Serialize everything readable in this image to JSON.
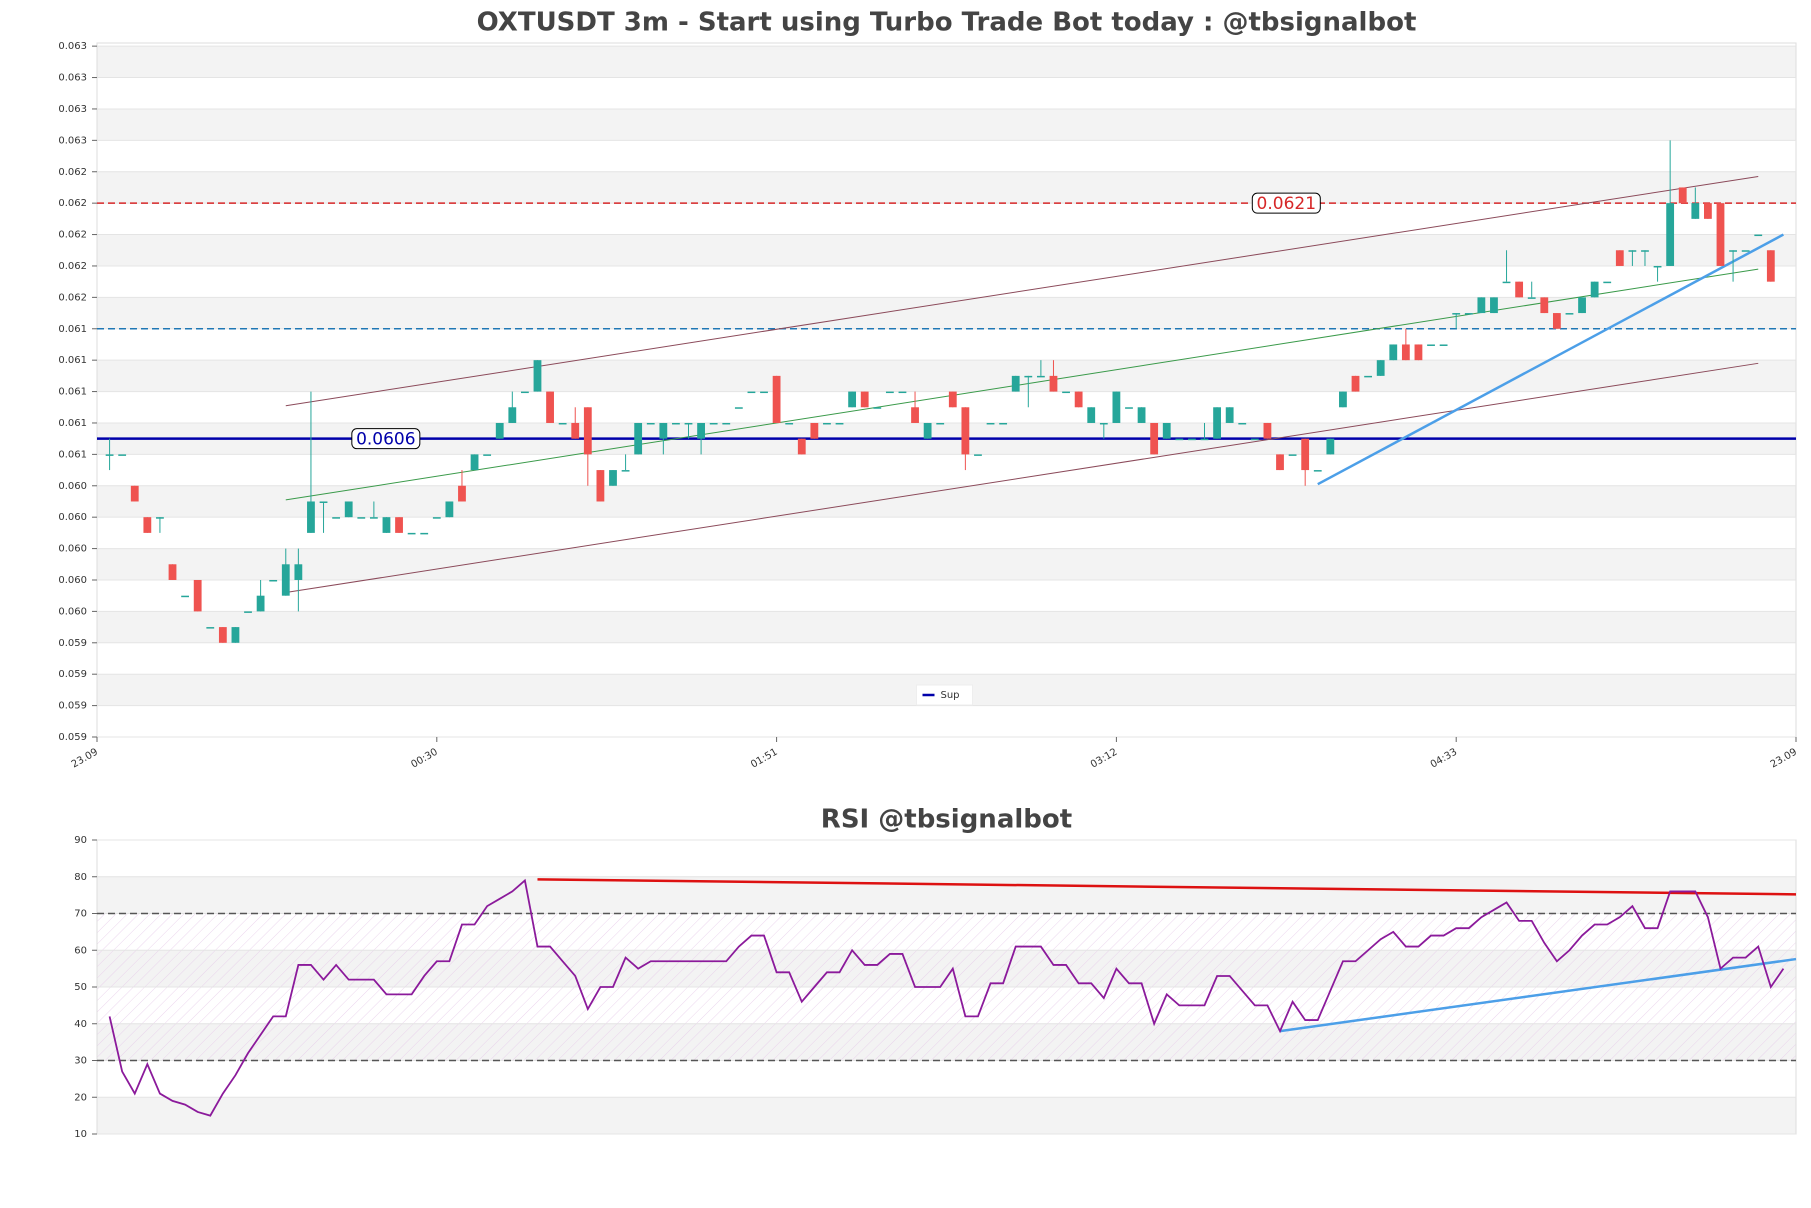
{
  "chart_data": [
    {
      "type": "candlestick",
      "title": "OXTUSDT 3m - Start using Turbo Trade Bot today : @tbsignalbot",
      "up_color": "#26a69a",
      "down_color": "#ef5350",
      "open": [
        0.0605,
        0.0605,
        0.0603,
        0.0601,
        0.0601,
        0.0598,
        0.0596,
        0.0597,
        0.0594,
        0.0594,
        0.0593,
        0.0595,
        0.0595,
        0.0597,
        0.0596,
        0.0597,
        0.06,
        0.0602,
        0.0601,
        0.0601,
        0.0601,
        0.0601,
        0.06,
        0.0601,
        0.06,
        0.06,
        0.0601,
        0.0601,
        0.0603,
        0.0604,
        0.0605,
        0.0606,
        0.0607,
        0.0609,
        0.0609,
        0.0609,
        0.0607,
        0.0607,
        0.0608,
        0.0604,
        0.0603,
        0.0604,
        0.0605,
        0.0607,
        0.0606,
        0.0607,
        0.0607,
        0.0606,
        0.0607,
        0.0607,
        0.0608,
        0.0609,
        0.0609,
        0.061,
        0.0607,
        0.0606,
        0.0607,
        0.0607,
        0.0607,
        0.0608,
        0.0609,
        0.0608,
        0.0609,
        0.0609,
        0.0608,
        0.0606,
        0.0607,
        0.0609,
        0.0608,
        0.0605,
        0.0607,
        0.0607,
        0.0609,
        0.061,
        0.061,
        0.061,
        0.0609,
        0.0609,
        0.0607,
        0.0607,
        0.0607,
        0.0608,
        0.0607,
        0.0607,
        0.0606,
        0.0606,
        0.0606,
        0.0606,
        0.0606,
        0.0607,
        0.0607,
        0.0606,
        0.0607,
        0.0605,
        0.0605,
        0.0606,
        0.0604,
        0.0605,
        0.0608,
        0.061,
        0.061,
        0.061,
        0.0611,
        0.0612,
        0.0612,
        0.0612,
        0.0612,
        0.0614,
        0.0614,
        0.0614,
        0.0614,
        0.0616,
        0.0616,
        0.0615,
        0.0615,
        0.0614,
        0.0614,
        0.0614,
        0.0615,
        0.0616,
        0.0618,
        0.0618,
        0.0618,
        0.0617,
        0.0617,
        0.0622,
        0.062,
        0.0621,
        0.0621,
        0.0618,
        0.0618,
        0.0619,
        0.0618
      ],
      "high": [
        0.0606,
        0.0605,
        0.0603,
        0.0601,
        0.0601,
        0.0598,
        0.0596,
        0.0597,
        0.0594,
        0.0594,
        0.0594,
        0.0595,
        0.0597,
        0.0597,
        0.0599,
        0.0599,
        0.0609,
        0.0602,
        0.0601,
        0.0602,
        0.0601,
        0.0602,
        0.0601,
        0.0601,
        0.06,
        0.06,
        0.0601,
        0.0602,
        0.0604,
        0.0605,
        0.0605,
        0.0607,
        0.0609,
        0.0609,
        0.0611,
        0.0609,
        0.0607,
        0.0608,
        0.0608,
        0.0604,
        0.0604,
        0.0605,
        0.0607,
        0.0607,
        0.0607,
        0.0607,
        0.0607,
        0.0607,
        0.0607,
        0.0607,
        0.0608,
        0.0609,
        0.0609,
        0.061,
        0.0607,
        0.0606,
        0.0607,
        0.0607,
        0.0607,
        0.0609,
        0.0609,
        0.0608,
        0.0609,
        0.0609,
        0.0609,
        0.0607,
        0.0607,
        0.0609,
        0.0608,
        0.0605,
        0.0607,
        0.0607,
        0.061,
        0.061,
        0.0611,
        0.0611,
        0.0609,
        0.0609,
        0.0608,
        0.0607,
        0.0609,
        0.0608,
        0.0608,
        0.0607,
        0.0607,
        0.0606,
        0.0606,
        0.0607,
        0.0608,
        0.0608,
        0.0607,
        0.0606,
        0.0607,
        0.0605,
        0.0605,
        0.0606,
        0.0604,
        0.0606,
        0.0609,
        0.061,
        0.061,
        0.0611,
        0.0612,
        0.0613,
        0.0612,
        0.0612,
        0.0612,
        0.0614,
        0.0614,
        0.0615,
        0.0615,
        0.0618,
        0.0616,
        0.0616,
        0.0615,
        0.0614,
        0.0614,
        0.0615,
        0.0616,
        0.0616,
        0.0618,
        0.0618,
        0.0618,
        0.0617,
        0.0625,
        0.0622,
        0.0622,
        0.0621,
        0.0621,
        0.0618,
        0.0618,
        0.0619,
        0.0618
      ],
      "low": [
        0.0604,
        0.0605,
        0.0602,
        0.06,
        0.06,
        0.0597,
        0.0596,
        0.0595,
        0.0594,
        0.0593,
        0.0593,
        0.0595,
        0.0595,
        0.0597,
        0.0596,
        0.0595,
        0.06,
        0.06,
        0.0601,
        0.0601,
        0.0601,
        0.0601,
        0.06,
        0.06,
        0.06,
        0.06,
        0.0601,
        0.0601,
        0.0602,
        0.0604,
        0.0605,
        0.0606,
        0.0607,
        0.0609,
        0.0609,
        0.0607,
        0.0607,
        0.0606,
        0.0603,
        0.0602,
        0.0603,
        0.0604,
        0.0605,
        0.0607,
        0.0605,
        0.0607,
        0.0606,
        0.0605,
        0.0607,
        0.0607,
        0.0608,
        0.0609,
        0.0609,
        0.0607,
        0.0607,
        0.0605,
        0.0606,
        0.0607,
        0.0607,
        0.0608,
        0.0608,
        0.0608,
        0.0609,
        0.0609,
        0.0607,
        0.0606,
        0.0607,
        0.0608,
        0.0604,
        0.0605,
        0.0607,
        0.0607,
        0.0609,
        0.0608,
        0.061,
        0.0609,
        0.0609,
        0.0608,
        0.0607,
        0.0606,
        0.0607,
        0.0608,
        0.0607,
        0.0605,
        0.0606,
        0.0606,
        0.0606,
        0.0606,
        0.0606,
        0.0607,
        0.0607,
        0.0606,
        0.0606,
        0.0604,
        0.0605,
        0.0603,
        0.0604,
        0.0605,
        0.0608,
        0.0609,
        0.061,
        0.061,
        0.0611,
        0.0611,
        0.0611,
        0.0612,
        0.0612,
        0.0613,
        0.0614,
        0.0614,
        0.0614,
        0.0616,
        0.0615,
        0.0615,
        0.0614,
        0.0613,
        0.0614,
        0.0614,
        0.0615,
        0.0616,
        0.0617,
        0.0617,
        0.0617,
        0.0616,
        0.0617,
        0.0621,
        0.062,
        0.062,
        0.0617,
        0.0616,
        0.0618,
        0.0619,
        0.0616
      ],
      "close": [
        0.0605,
        0.0605,
        0.0602,
        0.06,
        0.0601,
        0.0597,
        0.0596,
        0.0595,
        0.0594,
        0.0593,
        0.0594,
        0.0595,
        0.0596,
        0.0597,
        0.0598,
        0.0598,
        0.0602,
        0.0602,
        0.0601,
        0.0602,
        0.0601,
        0.0601,
        0.0601,
        0.06,
        0.06,
        0.06,
        0.0601,
        0.0602,
        0.0602,
        0.0605,
        0.0605,
        0.0607,
        0.0608,
        0.0609,
        0.0611,
        0.0607,
        0.0607,
        0.0606,
        0.0605,
        0.0602,
        0.0604,
        0.0604,
        0.0607,
        0.0607,
        0.0607,
        0.0607,
        0.0607,
        0.0607,
        0.0607,
        0.0607,
        0.0608,
        0.0609,
        0.0609,
        0.0607,
        0.0607,
        0.0605,
        0.0606,
        0.0607,
        0.0607,
        0.0609,
        0.0608,
        0.0608,
        0.0609,
        0.0609,
        0.0607,
        0.0607,
        0.0607,
        0.0608,
        0.0605,
        0.0605,
        0.0607,
        0.0607,
        0.061,
        0.061,
        0.061,
        0.0609,
        0.0609,
        0.0608,
        0.0608,
        0.0607,
        0.0609,
        0.0608,
        0.0608,
        0.0605,
        0.0607,
        0.0606,
        0.0606,
        0.0606,
        0.0608,
        0.0608,
        0.0607,
        0.0606,
        0.0606,
        0.0604,
        0.0605,
        0.0604,
        0.0604,
        0.0606,
        0.0609,
        0.0609,
        0.061,
        0.0611,
        0.0612,
        0.0611,
        0.0611,
        0.0612,
        0.0612,
        0.0614,
        0.0614,
        0.0615,
        0.0615,
        0.0616,
        0.0615,
        0.0615,
        0.0614,
        0.0613,
        0.0614,
        0.0615,
        0.0616,
        0.0616,
        0.0617,
        0.0618,
        0.0618,
        0.0617,
        0.0621,
        0.0621,
        0.0621,
        0.062,
        0.0617,
        0.0618,
        0.0618,
        0.0619,
        0.0616
      ],
      "xlim": [
        -1,
        134
      ],
      "xticks": [
        {
          "value": -1,
          "label": "23.09"
        },
        {
          "value": 26,
          "label": "00:30"
        },
        {
          "value": 53,
          "label": "01:51"
        },
        {
          "value": 80,
          "label": "03:12"
        },
        {
          "value": 107,
          "label": "04:33"
        },
        {
          "value": 134,
          "label": "23.09"
        }
      ],
      "ylim": [
        0.0587,
        0.06312
      ],
      "yticks": [
        {
          "value": 0.0587,
          "label": "0.059"
        },
        {
          "value": 0.0589,
          "label": "0.059"
        },
        {
          "value": 0.0591,
          "label": "0.059"
        },
        {
          "value": 0.0593,
          "label": "0.059"
        },
        {
          "value": 0.0595,
          "label": "0.060"
        },
        {
          "value": 0.0597,
          "label": "0.060"
        },
        {
          "value": 0.0599,
          "label": "0.060"
        },
        {
          "value": 0.0601,
          "label": "0.060"
        },
        {
          "value": 0.0603,
          "label": "0.060"
        },
        {
          "value": 0.0605,
          "label": "0.061"
        },
        {
          "value": 0.0607,
          "label": "0.061"
        },
        {
          "value": 0.0609,
          "label": "0.061"
        },
        {
          "value": 0.0611,
          "label": "0.061"
        },
        {
          "value": 0.0613,
          "label": "0.061"
        },
        {
          "value": 0.0615,
          "label": "0.062"
        },
        {
          "value": 0.0617,
          "label": "0.062"
        },
        {
          "value": 0.0619,
          "label": "0.062"
        },
        {
          "value": 0.0621,
          "label": "0.062"
        },
        {
          "value": 0.0623,
          "label": "0.062"
        },
        {
          "value": 0.0625,
          "label": "0.063"
        },
        {
          "value": 0.0627,
          "label": "0.063"
        },
        {
          "value": 0.0629,
          "label": "0.063"
        },
        {
          "value": 0.0631,
          "label": "0.063"
        }
      ],
      "hlines": [
        {
          "value": 0.0621,
          "color": "#d62728",
          "dashed": true,
          "labeled": true
        },
        {
          "value": 0.0613,
          "color": "#1f77b4",
          "dashed": true,
          "labeled": false
        },
        {
          "name": "Sup",
          "value": 0.0606,
          "color": "#0000aa",
          "dashed": false,
          "labeled": true
        }
      ],
      "lines": [
        {
          "x": [
            14,
            131
          ],
          "y": [
            0.06081,
            0.06227
          ],
          "color": "#8b4a5a",
          "width": 1
        },
        {
          "x": [
            14,
            131
          ],
          "y": [
            0.05962,
            0.06108
          ],
          "color": "#8b4a5a",
          "width": 1
        },
        {
          "x": [
            14,
            131
          ],
          "y": [
            0.06021,
            0.06168
          ],
          "color": "#3a9a4a",
          "width": 1
        },
        {
          "x": [
            96,
            133
          ],
          "y": [
            0.06031,
            0.0619
          ],
          "color": "#4c9fe8",
          "width": 2.5
        }
      ],
      "legend": "lower center",
      "grid": true
    },
    {
      "type": "line",
      "title": "RSI @tbsignalbot",
      "color": "#8b1a9b",
      "values": [
        42,
        27,
        21,
        29,
        21,
        19,
        18,
        16,
        15,
        21,
        26,
        32,
        37,
        42,
        42,
        56,
        56,
        52,
        56,
        52,
        52,
        52,
        48,
        48,
        48,
        53,
        57,
        57,
        67,
        67,
        72,
        74,
        76,
        79,
        61,
        61,
        57,
        53,
        44,
        50,
        50,
        58,
        55,
        57,
        57,
        57,
        57,
        57,
        57,
        57,
        61,
        64,
        64,
        54,
        54,
        46,
        50,
        54,
        54,
        60,
        56,
        56,
        59,
        59,
        50,
        50,
        50,
        55,
        42,
        42,
        51,
        51,
        61,
        61,
        61,
        56,
        56,
        51,
        51,
        47,
        55,
        51,
        51,
        40,
        48,
        45,
        45,
        45,
        53,
        53,
        49,
        45,
        45,
        38,
        46,
        41,
        41,
        49,
        57,
        57,
        60,
        63,
        65,
        61,
        61,
        64,
        64,
        66,
        66,
        69,
        71,
        73,
        68,
        68,
        62,
        57,
        60,
        64,
        67,
        67,
        69,
        72,
        66,
        66,
        76,
        76,
        76,
        69,
        55,
        58,
        58,
        61,
        50,
        55
      ],
      "xlim": [
        -1,
        134
      ],
      "ylim": [
        10,
        90
      ],
      "yticks": [
        10,
        20,
        30,
        40,
        50,
        60,
        70,
        80,
        90
      ],
      "hlines": [
        {
          "value": 30,
          "color": "#555555",
          "dashed": true
        },
        {
          "value": 70,
          "color": "#555555",
          "dashed": true
        }
      ],
      "lines": [
        {
          "x": [
            34,
            134
          ],
          "y": [
            79.3,
            75.2
          ],
          "color": "#dd1111",
          "width": 2.5
        },
        {
          "x": [
            93,
            134
          ],
          "y": [
            38,
            57.6
          ],
          "color": "#4c9fe8",
          "width": 2.5
        }
      ],
      "grid": true
    }
  ]
}
